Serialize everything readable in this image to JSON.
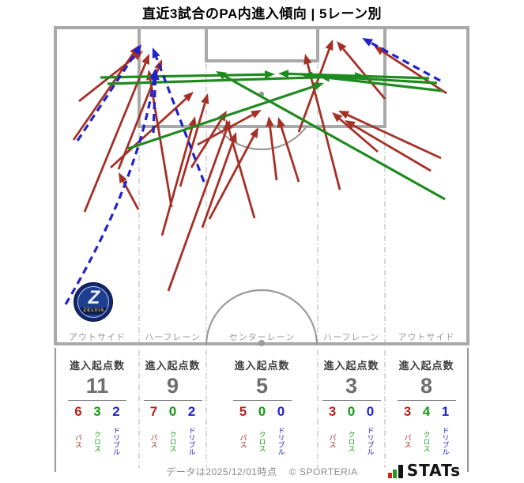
{
  "title": "直近3試合のPA内進入傾向 | 5レーン別",
  "colors": {
    "pass": "#a53026",
    "cross": "#1f8b1f",
    "dribble": "#2121cc",
    "pass_text": "#b5271d",
    "cross_text": "#169a16",
    "dribble_text": "#2222cc",
    "pitch_line": "#a9a9a9",
    "divider": "#c3c3c3",
    "label": "#9a9a9a"
  },
  "pitch": {
    "lane_labels": [
      "アウトサイド",
      "ハーフレーン",
      "センターレーン",
      "ハーフレーン",
      "アウトサイド"
    ]
  },
  "badge": {
    "club_initial": "Z",
    "club_name": "ZELVIA"
  },
  "table": {
    "header": "進入起点数",
    "legend": {
      "pass": "パス",
      "cross": "クロス",
      "dribble": "ドリブル"
    }
  },
  "footer": {
    "note": "データは2025/12/01時点",
    "copyright": "© SPORTERIA",
    "logo_text": "STATs"
  },
  "chart_data": {
    "type": "table",
    "title": "直近3試合のPA内進入傾向 | 5レーン別",
    "categories": [
      "アウトサイド(左)",
      "ハーフレーン(左)",
      "センターレーン",
      "ハーフレーン(右)",
      "アウトサイド(右)"
    ],
    "series": [
      {
        "name": "進入起点数",
        "values": [
          11,
          9,
          5,
          3,
          8
        ]
      },
      {
        "name": "パス",
        "values": [
          6,
          7,
          5,
          3,
          3
        ]
      },
      {
        "name": "クロス",
        "values": [
          3,
          0,
          0,
          0,
          4
        ]
      },
      {
        "name": "ドリブル",
        "values": [
          2,
          2,
          0,
          0,
          1
        ]
      }
    ],
    "arrows": {
      "pass": [
        [
          93,
          177,
          176,
          57
        ],
        [
          100,
          128,
          181,
          64
        ],
        [
          107,
          268,
          189,
          68
        ],
        [
          175,
          265,
          150,
          218
        ],
        [
          140,
          212,
          245,
          116
        ],
        [
          150,
          214,
          205,
          75
        ],
        [
          205,
          298,
          247,
          147
        ],
        [
          217,
          262,
          188,
          88
        ],
        [
          228,
          236,
          263,
          118
        ],
        [
          242,
          212,
          287,
          140
        ],
        [
          213,
          368,
          291,
          152
        ],
        [
          256,
          288,
          299,
          167
        ],
        [
          250,
          183,
          331,
          139
        ],
        [
          322,
          276,
          286,
          151
        ],
        [
          265,
          277,
          327,
          161
        ],
        [
          378,
          167,
          421,
          50
        ],
        [
          350,
          228,
          340,
          147
        ],
        [
          378,
          230,
          352,
          148
        ],
        [
          487,
          125,
          426,
          52
        ],
        [
          430,
          240,
          386,
          68
        ],
        [
          478,
          192,
          420,
          142
        ],
        [
          565,
          118,
          473,
          58
        ],
        [
          558,
          200,
          428,
          140
        ],
        [
          545,
          216,
          436,
          152
        ]
      ],
      "cross": [
        [
          127,
          98,
          348,
          94
        ],
        [
          136,
          106,
          462,
          96
        ],
        [
          162,
          188,
          410,
          105
        ],
        [
          543,
          99,
          352,
          93
        ],
        [
          553,
          105,
          382,
          95
        ],
        [
          560,
          115,
          404,
          97
        ],
        [
          563,
          252,
          273,
          90
        ]
      ],
      "dribble": [
        [
          98,
          178,
          179,
          56
        ],
        [
          83,
          385,
          197,
          86,
          175,
          230
        ],
        [
          258,
          230,
          193,
          60
        ],
        [
          194,
          168,
          197,
          88
        ],
        [
          557,
          102,
          458,
          48
        ]
      ]
    }
  }
}
